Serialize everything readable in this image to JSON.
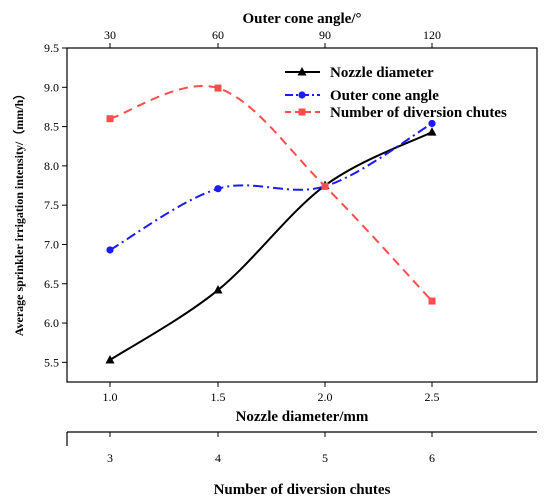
{
  "chart_data": {
    "type": "line",
    "top_axis": {
      "label": "Outer cone angle/°",
      "ticks": [
        30,
        60,
        90,
        120
      ]
    },
    "bottom_axis": {
      "label": "Nozzle diameter/mm",
      "ticks": [
        "1.0",
        "1.5",
        "2.0",
        "2.5"
      ]
    },
    "bottom_axis2": {
      "label": "Number of diversion chutes",
      "ticks": [
        "3",
        "4",
        "5",
        "6"
      ]
    },
    "ylabel": "Average sprinkler irrigation intensity/（mm/h）",
    "ylim": [
      5.25,
      9.5
    ],
    "yticks": [
      "5.5",
      "6.0",
      "6.5",
      "7.0",
      "7.5",
      "8.0",
      "8.5",
      "9.0",
      "9.5"
    ],
    "x_positions": [
      1,
      2,
      3,
      4
    ],
    "series": [
      {
        "name": "Nozzle diameter",
        "values": [
          5.53,
          6.42,
          7.75,
          8.43
        ],
        "color": "#000000",
        "dash": "solid",
        "marker": "triangle"
      },
      {
        "name": "Outer cone angle",
        "values": [
          6.93,
          7.71,
          7.74,
          8.54
        ],
        "color": "#1a1aff",
        "dash": "dashdot",
        "marker": "circle"
      },
      {
        "name": "Number of diversion chutes",
        "values": [
          8.6,
          8.99,
          7.74,
          6.28
        ],
        "color": "#ff4d4d",
        "dash": "dashed",
        "marker": "square"
      }
    ],
    "legend": "top-right",
    "grid": false
  }
}
